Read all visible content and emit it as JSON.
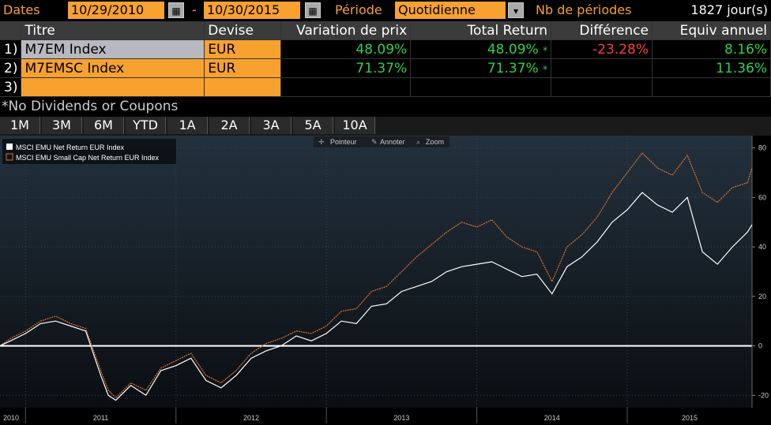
{
  "header": {
    "dates_label": "Dates",
    "start_date": "10/29/2010",
    "dash": "-",
    "end_date": "10/30/2015",
    "periode_label": "Période",
    "periode_value": "Quotidienne",
    "nb_periodes_label": "Nb de périodes",
    "nb_periodes_value": "1827 jour(s)"
  },
  "table": {
    "headers": [
      "Titre",
      "Devise",
      "Variation de prix",
      "Total Return",
      "Différence",
      "Equiv annuel"
    ],
    "rows": [
      {
        "no": "1)",
        "titre": "M7EM Index",
        "devise": "EUR",
        "variation": "48.09%",
        "total": "48.09%",
        "flag": "*",
        "diff": "-23.28%",
        "annuel": "8.16%"
      },
      {
        "no": "2)",
        "titre": "M7EMSC Index",
        "devise": "EUR",
        "variation": "71.37%",
        "total": "71.37%",
        "flag": "*",
        "diff": "",
        "annuel": "11.36%"
      },
      {
        "no": "3)",
        "titre": "",
        "devise": "",
        "variation": "",
        "total": "",
        "flag": "",
        "diff": "",
        "annuel": ""
      }
    ],
    "footnote": "*No Dividends or Coupons"
  },
  "tabs": [
    "1M",
    "3M",
    "6M",
    "YTD",
    "1A",
    "2A",
    "3A",
    "5A",
    "10A"
  ],
  "toolbar": {
    "pointer": "Pointeur",
    "annotate": "Annoter",
    "zoom": "Zoom"
  },
  "chart_data": {
    "type": "line",
    "legend": [
      "MSCI EMU Net Return EUR Index",
      "MSCI EMU Small Cap Net Return EUR Index"
    ],
    "colors": {
      "white": "#ffffff",
      "orange": "#e0722a",
      "accent": "#f7a12f"
    },
    "ylim": [
      -25,
      85
    ],
    "yticks": [
      80,
      60,
      40,
      20,
      0,
      -20
    ],
    "yticklabels": [
      "80",
      "60",
      "40",
      "20",
      "0",
      "-20"
    ],
    "xlim": [
      2010.83,
      2015.83
    ],
    "xticks": [
      2010,
      2011,
      2012,
      2013,
      2014,
      2015
    ],
    "xticklabels": [
      "2010",
      "2011",
      "2012",
      "2013",
      "2014",
      "2015"
    ],
    "series": [
      {
        "name": "MSCI EMU Net Return EUR Index",
        "x": [
          2010.83,
          2010.9,
          2011.0,
          2011.1,
          2011.2,
          2011.3,
          2011.4,
          2011.5,
          2011.55,
          2011.6,
          2011.7,
          2011.8,
          2011.9,
          2012.0,
          2012.1,
          2012.2,
          2012.3,
          2012.4,
          2012.5,
          2012.6,
          2012.7,
          2012.8,
          2012.9,
          2013.0,
          2013.1,
          2013.2,
          2013.3,
          2013.4,
          2013.5,
          2013.6,
          2013.7,
          2013.8,
          2013.9,
          2014.0,
          2014.1,
          2014.2,
          2014.3,
          2014.4,
          2014.5,
          2014.6,
          2014.7,
          2014.8,
          2014.9,
          2015.0,
          2015.1,
          2015.2,
          2015.3,
          2015.4,
          2015.5,
          2015.6,
          2015.7,
          2015.8,
          2015.83
        ],
        "values": [
          0,
          2,
          5,
          9,
          10,
          8,
          6,
          -12,
          -20,
          -22,
          -16,
          -20,
          -10,
          -8,
          -5,
          -14,
          -17,
          -12,
          -5,
          -2,
          0,
          4,
          2,
          5,
          10,
          9,
          16,
          17,
          22,
          24,
          26,
          30,
          32,
          33,
          34,
          31,
          28,
          29,
          21,
          32,
          36,
          42,
          50,
          55,
          62,
          57,
          54,
          60,
          38,
          33,
          40,
          46,
          49
        ]
      },
      {
        "name": "MSCI EMU Small Cap Net Return EUR Index",
        "x": [
          2010.83,
          2010.9,
          2011.0,
          2011.1,
          2011.2,
          2011.3,
          2011.4,
          2011.5,
          2011.55,
          2011.6,
          2011.7,
          2011.8,
          2011.9,
          2012.0,
          2012.1,
          2012.2,
          2012.3,
          2012.4,
          2012.5,
          2012.6,
          2012.7,
          2012.8,
          2012.9,
          2013.0,
          2013.1,
          2013.2,
          2013.3,
          2013.4,
          2013.5,
          2013.6,
          2013.7,
          2013.8,
          2013.9,
          2014.0,
          2014.1,
          2014.2,
          2014.3,
          2014.4,
          2014.5,
          2014.6,
          2014.7,
          2014.8,
          2014.9,
          2015.0,
          2015.1,
          2015.2,
          2015.3,
          2015.4,
          2015.5,
          2015.6,
          2015.7,
          2015.8,
          2015.83
        ],
        "values": [
          0,
          3,
          6,
          10,
          12,
          9,
          7,
          -10,
          -18,
          -21,
          -15,
          -18,
          -9,
          -6,
          -3,
          -12,
          -15,
          -10,
          -3,
          1,
          3,
          6,
          5,
          8,
          14,
          15,
          22,
          24,
          30,
          36,
          41,
          46,
          50,
          48,
          51,
          44,
          40,
          38,
          26,
          40,
          45,
          52,
          62,
          70,
          78,
          72,
          69,
          77,
          62,
          58,
          64,
          66,
          72
        ]
      }
    ]
  }
}
